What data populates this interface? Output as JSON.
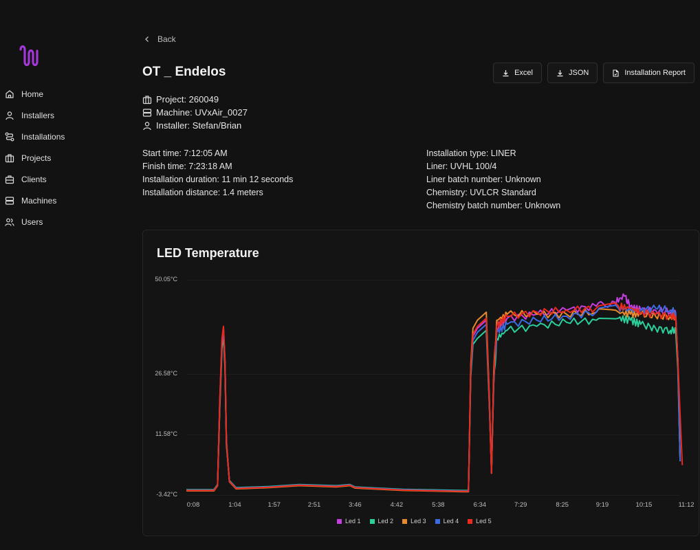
{
  "nav": {
    "items": [
      {
        "label": "Home",
        "icon": "home-icon"
      },
      {
        "label": "Installers",
        "icon": "user-icon"
      },
      {
        "label": "Installations",
        "icon": "route-icon"
      },
      {
        "label": "Projects",
        "icon": "briefcase-icon"
      },
      {
        "label": "Clients",
        "icon": "briefcase-icon"
      },
      {
        "label": "Machines",
        "icon": "server-icon"
      },
      {
        "label": "Users",
        "icon": "users-icon"
      }
    ]
  },
  "header": {
    "back_label": "Back",
    "title": "OT _ Endelos",
    "buttons": {
      "excel": "Excel",
      "json": "JSON",
      "report": "Installation Report"
    }
  },
  "meta": {
    "project": "Project: 260049",
    "machine": "Machine: UVxAir_0027",
    "installer": "Installer: Stefan/Brian"
  },
  "details_left": [
    "Start time: 7:12:05 AM",
    "Finish time: 7:23:18 AM",
    "Installation duration: 11 min 12 seconds",
    "Installation distance: 1.4 meters"
  ],
  "details_right": [
    "Installation type: LINER",
    "Liner: UVHL 100/4",
    "Liner batch number: Unknown",
    "Chemistry: UVLCR Standard",
    "Chemistry batch number: Unknown"
  ],
  "colors": {
    "accent": "#a238d6"
  },
  "chart_data": {
    "type": "line",
    "title": "LED Temperature",
    "ylabel": "",
    "xlabel": "",
    "y_ticks": [
      "50.05°C",
      "26.58°C",
      "11.58°C",
      "-3.42°C"
    ],
    "y_tick_values": [
      50.05,
      26.58,
      11.58,
      -3.42
    ],
    "ylim": [
      -3.42,
      50.05
    ],
    "x_ticks": [
      "0:08",
      "1:04",
      "1:57",
      "2:51",
      "3:46",
      "4:42",
      "5:38",
      "6:34",
      "7:29",
      "8:25",
      "9:19",
      "10:15",
      "11:12"
    ],
    "x_tick_seconds": [
      8,
      64,
      117,
      171,
      226,
      282,
      338,
      394,
      449,
      505,
      559,
      615,
      672
    ],
    "legend_position": "bottom",
    "series": [
      {
        "name": "Led 1",
        "color": "#c43fe0",
        "points": [
          [
            8,
            -2.3
          ],
          [
            45,
            -2.3
          ],
          [
            50,
            -1.0
          ],
          [
            53,
            20.0
          ],
          [
            56,
            35.0
          ],
          [
            58,
            38.0
          ],
          [
            60,
            30.0
          ],
          [
            62,
            10.0
          ],
          [
            66,
            0.0
          ],
          [
            75,
            -1.8
          ],
          [
            120,
            -1.5
          ],
          [
            160,
            -1.0
          ],
          [
            210,
            -1.3
          ],
          [
            228,
            -1.0
          ],
          [
            235,
            -1.6
          ],
          [
            300,
            -2.2
          ],
          [
            380,
            -2.5
          ],
          [
            388,
            -2.5
          ],
          [
            391,
            28.0
          ],
          [
            394,
            36.0
          ],
          [
            400,
            38.0
          ],
          [
            412,
            40.0
          ],
          [
            416,
            20.0
          ],
          [
            419,
            2.0
          ],
          [
            422,
            26.0
          ],
          [
            426,
            38.0
          ],
          [
            440,
            40.5
          ],
          [
            480,
            41.5
          ],
          [
            520,
            42.5
          ],
          [
            560,
            43.5
          ],
          [
            585,
            44.5
          ],
          [
            598,
            46.0
          ],
          [
            606,
            43.5
          ],
          [
            620,
            42.5
          ],
          [
            640,
            42.5
          ],
          [
            660,
            42.0
          ],
          [
            667,
            41.5
          ],
          [
            670,
            30.0
          ],
          [
            673,
            5.0
          ]
        ]
      },
      {
        "name": "Led 2",
        "color": "#2bcf9b",
        "points": [
          [
            8,
            -2.1
          ],
          [
            45,
            -2.1
          ],
          [
            50,
            -0.8
          ],
          [
            53,
            18.0
          ],
          [
            56,
            33.0
          ],
          [
            58,
            36.0
          ],
          [
            60,
            28.0
          ],
          [
            62,
            9.0
          ],
          [
            66,
            0.2
          ],
          [
            75,
            -1.6
          ],
          [
            120,
            -1.3
          ],
          [
            160,
            -0.8
          ],
          [
            210,
            -1.1
          ],
          [
            228,
            -0.8
          ],
          [
            235,
            -1.4
          ],
          [
            300,
            -2.0
          ],
          [
            380,
            -2.3
          ],
          [
            388,
            -2.3
          ],
          [
            391,
            26.0
          ],
          [
            394,
            34.0
          ],
          [
            400,
            35.5
          ],
          [
            412,
            37.5
          ],
          [
            416,
            19.0
          ],
          [
            419,
            2.5
          ],
          [
            422,
            24.0
          ],
          [
            426,
            35.5
          ],
          [
            440,
            37.5
          ],
          [
            480,
            38.5
          ],
          [
            520,
            39.5
          ],
          [
            560,
            40.0
          ],
          [
            590,
            40.5
          ],
          [
            606,
            40.0
          ],
          [
            620,
            39.0
          ],
          [
            640,
            38.0
          ],
          [
            660,
            37.5
          ],
          [
            667,
            37.5
          ],
          [
            670,
            28.0
          ],
          [
            673,
            5.0
          ]
        ]
      },
      {
        "name": "Led 3",
        "color": "#e88a2e",
        "points": [
          [
            8,
            -2.4
          ],
          [
            45,
            -2.4
          ],
          [
            50,
            -1.1
          ],
          [
            53,
            19.0
          ],
          [
            56,
            34.0
          ],
          [
            58,
            37.5
          ],
          [
            60,
            29.0
          ],
          [
            62,
            9.5
          ],
          [
            66,
            -0.1
          ],
          [
            75,
            -1.9
          ],
          [
            120,
            -1.6
          ],
          [
            160,
            -1.1
          ],
          [
            210,
            -1.4
          ],
          [
            228,
            -1.1
          ],
          [
            235,
            -1.7
          ],
          [
            300,
            -2.3
          ],
          [
            380,
            -2.6
          ],
          [
            388,
            -2.6
          ],
          [
            391,
            29.0
          ],
          [
            394,
            38.0
          ],
          [
            400,
            40.0
          ],
          [
            412,
            42.0
          ],
          [
            416,
            21.0
          ],
          [
            419,
            2.0
          ],
          [
            422,
            27.0
          ],
          [
            426,
            40.0
          ],
          [
            440,
            41.5
          ],
          [
            480,
            41.5
          ],
          [
            520,
            41.5
          ],
          [
            560,
            42.0
          ],
          [
            590,
            42.0
          ],
          [
            606,
            41.5
          ],
          [
            620,
            41.5
          ],
          [
            640,
            41.0
          ],
          [
            660,
            41.0
          ],
          [
            667,
            41.0
          ],
          [
            670,
            30.0
          ],
          [
            673,
            5.0
          ]
        ]
      },
      {
        "name": "Led 4",
        "color": "#3b6be0",
        "points": [
          [
            8,
            -2.2
          ],
          [
            45,
            -2.2
          ],
          [
            50,
            -0.9
          ],
          [
            53,
            19.5
          ],
          [
            56,
            34.5
          ],
          [
            58,
            37.5
          ],
          [
            60,
            29.5
          ],
          [
            62,
            9.8
          ],
          [
            66,
            0.1
          ],
          [
            75,
            -1.7
          ],
          [
            120,
            -1.4
          ],
          [
            160,
            -0.9
          ],
          [
            210,
            -1.2
          ],
          [
            228,
            -0.9
          ],
          [
            235,
            -1.5
          ],
          [
            300,
            -2.1
          ],
          [
            380,
            -2.4
          ],
          [
            388,
            -2.4
          ],
          [
            391,
            27.0
          ],
          [
            394,
            35.0
          ],
          [
            400,
            37.0
          ],
          [
            412,
            39.0
          ],
          [
            416,
            19.5
          ],
          [
            419,
            2.2
          ],
          [
            422,
            25.0
          ],
          [
            426,
            37.0
          ],
          [
            440,
            39.0
          ],
          [
            480,
            40.0
          ],
          [
            520,
            41.0
          ],
          [
            560,
            42.0
          ],
          [
            590,
            43.0
          ],
          [
            606,
            42.5
          ],
          [
            620,
            42.5
          ],
          [
            640,
            43.0
          ],
          [
            660,
            42.5
          ],
          [
            667,
            42.0
          ],
          [
            670,
            30.0
          ],
          [
            673,
            5.0
          ]
        ]
      },
      {
        "name": "Led 5",
        "color": "#e82a1f",
        "points": [
          [
            8,
            -2.3
          ],
          [
            45,
            -2.3
          ],
          [
            50,
            -1.0
          ],
          [
            53,
            20.0
          ],
          [
            56,
            35.5
          ],
          [
            58,
            38.5
          ],
          [
            60,
            30.0
          ],
          [
            62,
            10.0
          ],
          [
            66,
            0.0
          ],
          [
            75,
            -1.8
          ],
          [
            120,
            -1.5
          ],
          [
            160,
            -1.0
          ],
          [
            210,
            -1.3
          ],
          [
            228,
            -1.0
          ],
          [
            235,
            -1.6
          ],
          [
            300,
            -2.2
          ],
          [
            380,
            -2.5
          ],
          [
            388,
            -2.5
          ],
          [
            391,
            28.0
          ],
          [
            394,
            36.5
          ],
          [
            400,
            38.5
          ],
          [
            412,
            40.5
          ],
          [
            416,
            20.0
          ],
          [
            419,
            2.0
          ],
          [
            422,
            26.0
          ],
          [
            426,
            38.5
          ],
          [
            440,
            41.0
          ],
          [
            480,
            42.0
          ],
          [
            520,
            42.5
          ],
          [
            560,
            43.0
          ],
          [
            590,
            43.5
          ],
          [
            606,
            43.0
          ],
          [
            620,
            42.0
          ],
          [
            640,
            41.5
          ],
          [
            660,
            41.0
          ],
          [
            667,
            41.0
          ],
          [
            670,
            30.0
          ],
          [
            674,
            12.0
          ],
          [
            676,
            4.0
          ]
        ]
      }
    ]
  }
}
